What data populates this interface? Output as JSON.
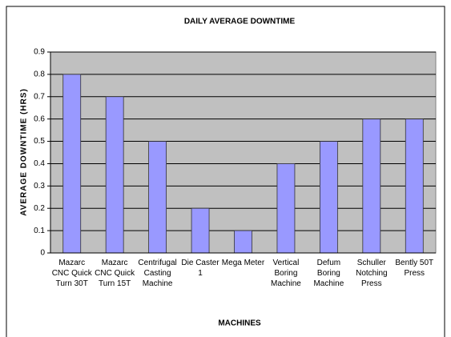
{
  "chart_data": {
    "type": "bar",
    "title": "DAILY AVERAGE DOWNTIME",
    "xlabel": "MACHINES",
    "ylabel": "AVERAGE DOWNTIME (HRS)",
    "categories": [
      "Mazarc CNC Quick Turn 30T",
      "Mazarc CNC Quick Turn 15T",
      "Centrifugal Casting Machine",
      "Die Caster 1",
      "Mega Meter",
      "Vertical Boring Machine",
      "Defum Boring Machine",
      "Schuller Notching Press",
      "Bently 50T Press"
    ],
    "values": [
      0.8,
      0.7,
      0.5,
      0.2,
      0.1,
      0.4,
      0.5,
      0.6,
      0.6
    ],
    "color": "#9999ff",
    "ylim": [
      0,
      0.9
    ],
    "yticks": [
      0,
      0.1,
      0.2,
      0.3,
      0.4,
      0.5,
      0.6,
      0.7,
      0.8,
      0.9
    ],
    "grid": true
  }
}
